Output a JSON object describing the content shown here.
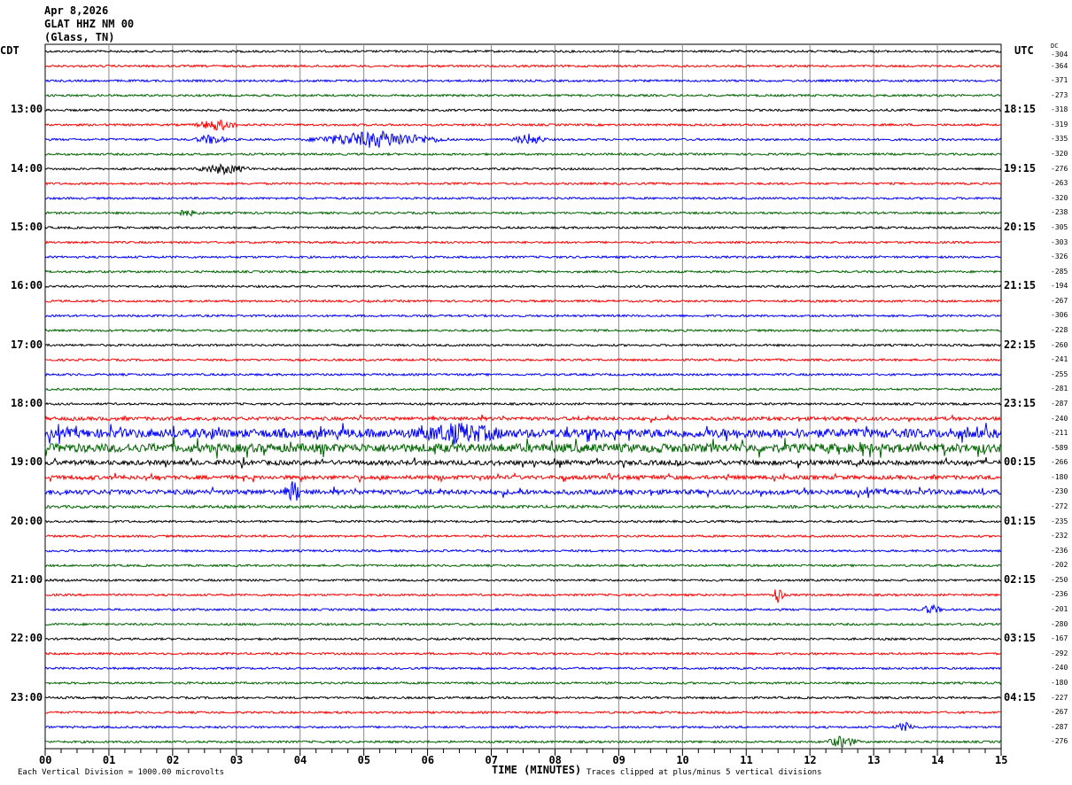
{
  "header": {
    "date": "Apr 8,2026",
    "station": "GLAT HHZ NM 00",
    "location": "(Glass, TN)"
  },
  "left_zone": "CDT",
  "right_zone": "UTC",
  "dc_label": "DC",
  "footer": {
    "xlabel": "TIME (MINUTES)",
    "scale_note": "Each Vertical Division = 1000.00 microvolts",
    "clip_note": "Traces clipped at plus/minus 5 vertical divisions"
  },
  "chart_data": {
    "type": "line",
    "title": "GLAT HHZ NM 00 (Glass, TN) Apr 8,2026",
    "xlabel": "TIME (MINUTES)",
    "xlim": [
      0,
      15
    ],
    "x_ticks": [
      "00",
      "01",
      "02",
      "03",
      "04",
      "05",
      "06",
      "07",
      "08",
      "09",
      "10",
      "11",
      "12",
      "13",
      "14",
      "15"
    ],
    "trace_colors": [
      "#000000",
      "#ff0000",
      "#0000ff",
      "#006400"
    ],
    "left_labels": [
      {
        "trace": 4,
        "text": "13:00"
      },
      {
        "trace": 8,
        "text": "14:00"
      },
      {
        "trace": 12,
        "text": "15:00"
      },
      {
        "trace": 16,
        "text": "16:00"
      },
      {
        "trace": 20,
        "text": "17:00"
      },
      {
        "trace": 24,
        "text": "18:00"
      },
      {
        "trace": 28,
        "text": "19:00"
      },
      {
        "trace": 32,
        "text": "20:00"
      },
      {
        "trace": 36,
        "text": "21:00"
      },
      {
        "trace": 40,
        "text": "22:00"
      },
      {
        "trace": 44,
        "text": "23:00"
      }
    ],
    "right_labels": [
      {
        "trace": 4,
        "text": "18:15"
      },
      {
        "trace": 8,
        "text": "19:15"
      },
      {
        "trace": 12,
        "text": "20:15"
      },
      {
        "trace": 16,
        "text": "21:15"
      },
      {
        "trace": 20,
        "text": "22:15"
      },
      {
        "trace": 24,
        "text": "23:15"
      },
      {
        "trace": 28,
        "text": "00:15"
      },
      {
        "trace": 32,
        "text": "01:15"
      },
      {
        "trace": 36,
        "text": "02:15"
      },
      {
        "trace": 40,
        "text": "03:15"
      },
      {
        "trace": 44,
        "text": "04:15"
      }
    ],
    "dc_offsets": [
      "-304",
      "-364",
      "-371",
      "-273",
      "-318",
      "-319",
      "-335",
      "-320",
      "-276",
      "-263",
      "-320",
      "-238",
      "-305",
      "-303",
      "-326",
      "-285",
      "-194",
      "-267",
      "-306",
      "-228",
      "-260",
      "-241",
      "-255",
      "-281",
      "-287",
      "-240",
      "-211",
      "-589",
      "-266",
      "-180",
      "-230",
      "-272",
      "-235",
      "-232",
      "-236",
      "-202",
      "-250",
      "-236",
      "-201",
      "-280",
      "-167",
      "-292",
      "-240",
      "-180",
      "-227",
      "-267",
      "-287",
      "-276"
    ],
    "noise_levels": [
      1,
      1,
      1,
      1,
      1,
      1,
      1,
      1,
      1,
      1,
      1,
      1,
      1,
      1,
      1,
      1,
      1,
      1,
      1,
      1,
      1,
      1,
      1,
      1,
      1,
      1.6,
      4,
      4,
      2.2,
      1.8,
      2.2,
      1.3,
      1,
      1,
      1,
      1,
      1,
      1,
      1,
      1,
      1,
      1,
      1,
      1,
      1,
      1,
      1,
      1
    ],
    "events": [
      {
        "trace": 5,
        "minute": 2.7,
        "amplitude": 6,
        "duration": 0.4
      },
      {
        "trace": 6,
        "minute": 2.6,
        "amplitude": 5,
        "duration": 0.3
      },
      {
        "trace": 6,
        "minute": 5.2,
        "amplitude": 9,
        "duration": 1.2
      },
      {
        "trace": 6,
        "minute": 7.6,
        "amplitude": 6,
        "duration": 0.3
      },
      {
        "trace": 8,
        "minute": 2.8,
        "amplitude": 5,
        "duration": 0.5
      },
      {
        "trace": 11,
        "minute": 2.2,
        "amplitude": 3,
        "duration": 0.3
      },
      {
        "trace": 26,
        "minute": 6.5,
        "amplitude": 8,
        "duration": 0.8
      },
      {
        "trace": 30,
        "minute": 3.9,
        "amplitude": 12,
        "duration": 0.15
      },
      {
        "trace": 37,
        "minute": 11.5,
        "amplitude": 10,
        "duration": 0.12
      },
      {
        "trace": 38,
        "minute": 13.9,
        "amplitude": 5,
        "duration": 0.2
      },
      {
        "trace": 46,
        "minute": 13.5,
        "amplitude": 5,
        "duration": 0.2
      },
      {
        "trace": 47,
        "minute": 12.5,
        "amplitude": 6,
        "duration": 0.3
      }
    ]
  }
}
